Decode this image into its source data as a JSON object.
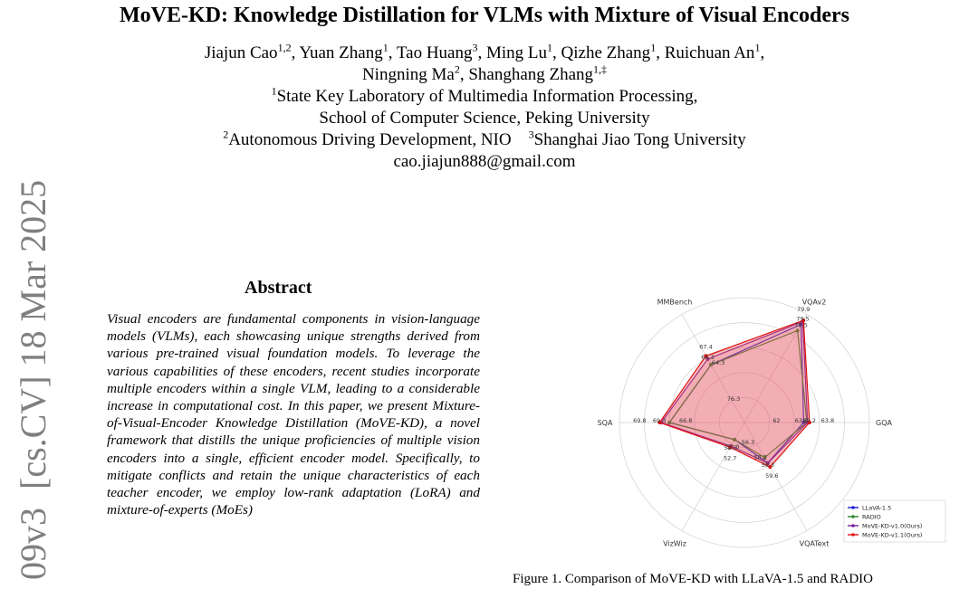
{
  "title": "MoVE-KD: Knowledge Distillation for VLMs with Mixture of Visual Encoders",
  "authors": {
    "line1": [
      {
        "name": "Jiajun Cao",
        "sup": "1,2"
      },
      {
        "name": "Yuan Zhang",
        "sup": "1"
      },
      {
        "name": "Tao Huang",
        "sup": "3"
      },
      {
        "name": "Ming Lu",
        "sup": "1"
      },
      {
        "name": "Qizhe Zhang",
        "sup": "1"
      },
      {
        "name": "Ruichuan An",
        "sup": "1"
      }
    ],
    "line2": [
      {
        "name": "Ningning Ma",
        "sup": "2"
      },
      {
        "name": "Shanghang Zhang",
        "sup": "1,‡"
      }
    ],
    "aff1_sup": "1",
    "aff1_a": "State Key Laboratory of Multimedia Information Processing,",
    "aff1_b": "School of Computer Science, Peking University",
    "aff2_sup": "2",
    "aff2": "Autonomous Driving Development, NIO",
    "aff3_sup": "3",
    "aff3": "Shanghai Jiao Tong University",
    "email": "cao.jiajun888@gmail.com"
  },
  "arxiv_id": "[cs.CV]  18 Mar 2025",
  "arxiv_prefix": "09v3",
  "abstract": {
    "heading": "Abstract",
    "text": "Visual encoders are fundamental components in vision-language models (VLMs), each showcasing unique strengths derived from various pre-trained visual foundation models. To leverage the various capabilities of these encoders, recent studies incorporate multiple encoders within a single VLM, leading to a considerable increase in computational cost. In this paper, we present Mixture-of-Visual-Encoder Knowledge Distillation (MoVE-KD), a novel framework that distills the unique proficiencies of multiple vision encoders into a single, efficient encoder model. Specifically, to mitigate conflicts and retain the unique characteristics of each teacher encoder, we employ low-rank adaptation (LoRA) and mixture-of-experts (MoEs)"
  },
  "caption_fragment": "Figure 1. Comparison of MoVE-KD with LLaVA-1.5 and RADIO",
  "chart_data": {
    "type": "radar",
    "axes": [
      "VQAv2",
      "GQA",
      "VQAText",
      "VizWiz",
      "SQA",
      "MMBench"
    ],
    "series": [
      {
        "name": "LLaVA-1.5",
        "color": "#1f1fd6",
        "values": [
          78.5,
          62.0,
          58.2,
          50.0,
          66.8,
          64.3
        ]
      },
      {
        "name": "RADIO",
        "color": "#2b8a2b",
        "values": [
          76.3,
          63.0,
          56.3,
          50.0,
          66.8,
          64.3
        ]
      },
      {
        "name": "MoVE-KD-v1.0(Ours)",
        "color": "#7b1f9e",
        "values": [
          79.5,
          63.2,
          58.3,
          52.3,
          69.3,
          66.3
        ]
      },
      {
        "name": "MoVE-KD-v1.1(Ours)",
        "color": "#e01010",
        "values": [
          79.9,
          63.8,
          59.6,
          52.7,
          69.8,
          67.4
        ]
      }
    ],
    "value_labels": {
      "VQAv2": [
        "79.9",
        "79.5",
        "78.5"
      ],
      "GQA": [
        "63.8",
        "63.2",
        "63.0",
        "62"
      ],
      "VQAText": [
        "59.6",
        "58.3",
        "58.2"
      ],
      "VizWiz": [
        "52.7",
        "52.3",
        "50.0"
      ],
      "SQA": [
        "69.8",
        "69.3",
        "66.8"
      ],
      "MMBench": [
        "67.4",
        "66.3",
        "64.3"
      ],
      "center": [
        "76.3",
        "56.3"
      ]
    },
    "legend_position": "bottom-right",
    "grid": true
  }
}
